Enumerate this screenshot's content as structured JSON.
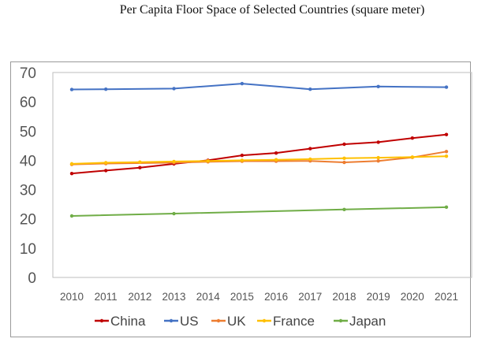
{
  "chart_data": {
    "type": "line",
    "title": "Per Capita Floor Space of Selected Countries (square meter)",
    "xlabel": "",
    "ylabel": "",
    "x": [
      "2010",
      "2011",
      "2012",
      "2013",
      "2014",
      "2015",
      "2016",
      "2017",
      "2018",
      "2019",
      "2020",
      "2021"
    ],
    "ylim": [
      0,
      70
    ],
    "yticks": [
      0,
      10,
      20,
      30,
      40,
      50,
      60,
      70
    ],
    "grid": false,
    "legend_position": "bottom",
    "series": [
      {
        "name": "China",
        "color": "#c00000",
        "values": [
          35.5,
          36.5,
          37.5,
          38.8,
          40.0,
          41.7,
          42.5,
          44.0,
          45.5,
          46.2,
          47.6,
          48.8
        ]
      },
      {
        "name": "US",
        "color": "#4472c4",
        "values": [
          64.2,
          64.3,
          null,
          64.5,
          null,
          66.2,
          null,
          64.3,
          null,
          65.2,
          null,
          65.0
        ]
      },
      {
        "name": "UK",
        "color": "#ed7d31",
        "values": [
          38.6,
          38.9,
          null,
          39.2,
          39.5,
          39.7,
          39.7,
          39.8,
          39.3,
          39.8,
          41.0,
          43.0
        ]
      },
      {
        "name": "France",
        "color": "#ffc000",
        "values": [
          38.8,
          39.2,
          39.4,
          39.6,
          39.8,
          40.0,
          40.2,
          40.4,
          40.7,
          40.9,
          41.1,
          41.4
        ]
      },
      {
        "name": "Japan",
        "color": "#70ad47",
        "values": [
          21.0,
          null,
          null,
          21.8,
          null,
          null,
          null,
          null,
          23.2,
          null,
          null,
          24.0
        ]
      }
    ]
  }
}
